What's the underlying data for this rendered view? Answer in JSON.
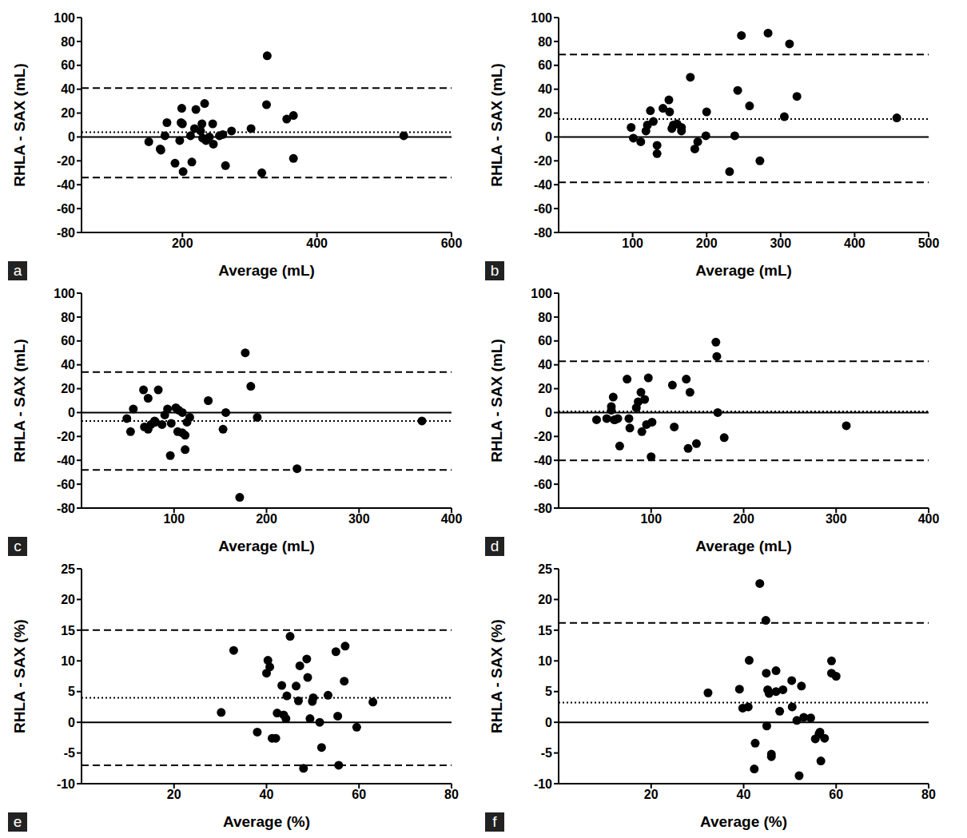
{
  "chart_data": [
    {
      "type": "scatter",
      "panel": "a",
      "x_label": "Average (mL)",
      "y_label": "RHLA - SAX (mL)",
      "color": "#000000",
      "marker": "circle",
      "xlim": [
        50,
        600
      ],
      "xticks": [
        200,
        400,
        600
      ],
      "ylim": [
        -80,
        100
      ],
      "yticks": [
        -80,
        -60,
        -40,
        -20,
        0,
        20,
        40,
        60,
        80,
        100
      ],
      "x": [
        150,
        167,
        168,
        177,
        174,
        189,
        198,
        199,
        200,
        196,
        201,
        212,
        214,
        218,
        220,
        227,
        229,
        233,
        230,
        235,
        240,
        245,
        246,
        255,
        260,
        264,
        273,
        302,
        318,
        325,
        326,
        355,
        365,
        365,
        529
      ],
      "y": [
        -4,
        -10,
        -11,
        12,
        1,
        -22,
        12,
        24,
        11,
        -3,
        -29,
        1,
        -21,
        7,
        23,
        5,
        11,
        28,
        -1,
        -3,
        0,
        11,
        -6,
        1,
        2,
        -24,
        5,
        7,
        -30,
        27,
        68,
        15,
        18,
        -18,
        1
      ],
      "reference_lines": [
        {
          "y": 0,
          "line_style": "solid"
        },
        {
          "y": 4,
          "line_style": "dotted"
        },
        {
          "y": 41,
          "line_style": "dashed"
        },
        {
          "y": -34,
          "line_style": "dashed"
        }
      ]
    },
    {
      "type": "scatter",
      "panel": "b",
      "x_label": "Average (mL)",
      "y_label": "RHLA - SAX (mL)",
      "color": "#000000",
      "marker": "circle",
      "xlim": [
        0,
        500
      ],
      "xticks": [
        100,
        200,
        300,
        400,
        500
      ],
      "ylim": [
        -80,
        100
      ],
      "yticks": [
        -80,
        -60,
        -40,
        -20,
        0,
        20,
        40,
        60,
        80,
        100
      ],
      "x": [
        98,
        101,
        111,
        118,
        120,
        124,
        128,
        133,
        133,
        141,
        149,
        150,
        153,
        155,
        160,
        166,
        166,
        178,
        184,
        188,
        200,
        199,
        231,
        238,
        242,
        247,
        258,
        272,
        283,
        305,
        312,
        322,
        457
      ],
      "y": [
        8,
        -1,
        -4,
        5,
        10,
        22,
        13,
        -7,
        -14,
        24,
        31,
        21,
        7,
        10,
        11,
        8,
        5,
        50,
        -10,
        -4,
        21,
        1,
        -29,
        1,
        39,
        85,
        26,
        -20,
        87,
        17,
        78,
        34,
        16
      ],
      "reference_lines": [
        {
          "y": 0,
          "line_style": "solid"
        },
        {
          "y": 15,
          "line_style": "dotted"
        },
        {
          "y": 69,
          "line_style": "dashed"
        },
        {
          "y": -38,
          "line_style": "dashed"
        }
      ]
    },
    {
      "type": "scatter",
      "panel": "c",
      "x_label": "Average (mL)",
      "y_label": "RHLA - SAX (mL)",
      "color": "#000000",
      "marker": "circle",
      "xlim": [
        0,
        400
      ],
      "xticks": [
        100,
        200,
        300,
        400
      ],
      "ylim": [
        -80,
        100
      ],
      "yticks": [
        -80,
        -60,
        -40,
        -20,
        0,
        20,
        40,
        60,
        80,
        100
      ],
      "x": [
        49,
        53,
        56,
        67,
        72,
        68,
        72,
        75,
        79,
        80,
        83,
        87,
        90,
        93,
        96,
        97,
        102,
        104,
        105,
        109,
        109,
        112,
        112,
        114,
        117,
        137,
        153,
        156,
        171,
        177,
        183,
        190,
        233,
        368
      ],
      "y": [
        -5,
        -16,
        3,
        19,
        12,
        -12,
        -14,
        -10,
        -7,
        -8,
        19,
        -10,
        -2,
        3,
        -36,
        -9,
        4,
        -16,
        2,
        -17,
        0,
        -31,
        -19,
        -8,
        -4,
        10,
        -14,
        0,
        -71,
        50,
        22,
        -4,
        -47,
        -7
      ],
      "reference_lines": [
        {
          "y": 0,
          "line_style": "solid"
        },
        {
          "y": -7,
          "line_style": "dotted"
        },
        {
          "y": 34,
          "line_style": "dashed"
        },
        {
          "y": -48,
          "line_style": "dashed"
        }
      ]
    },
    {
      "type": "scatter",
      "panel": "d",
      "x_label": "Average (mL)",
      "y_label": "RHLA - SAX (mL)",
      "color": "#000000",
      "marker": "circle",
      "xlim": [
        0,
        400
      ],
      "xticks": [
        100,
        200,
        300,
        400
      ],
      "ylim": [
        -80,
        100
      ],
      "yticks": [
        -80,
        -60,
        -40,
        -20,
        0,
        20,
        40,
        60,
        80,
        100
      ],
      "x": [
        41,
        52,
        57,
        57,
        59,
        60,
        61,
        64,
        66,
        74,
        77,
        76,
        84,
        86,
        89,
        90,
        93,
        95,
        97,
        100,
        101,
        123,
        125,
        138,
        140,
        142,
        149,
        170,
        171,
        172,
        179,
        311
      ],
      "y": [
        -6,
        -5,
        2,
        5,
        13,
        -6,
        -6,
        -5,
        -28,
        28,
        -13,
        -5,
        4,
        9,
        17,
        -16,
        11,
        -10,
        29,
        -37,
        -8,
        23,
        -12,
        28,
        -30,
        17,
        -26,
        59,
        47,
        0,
        -21,
        -11
      ],
      "reference_lines": [
        {
          "y": 0,
          "line_style": "solid"
        },
        {
          "y": 1,
          "line_style": "dotted"
        },
        {
          "y": 43,
          "line_style": "dashed"
        },
        {
          "y": -40,
          "line_style": "dashed"
        }
      ]
    },
    {
      "type": "scatter",
      "panel": "e",
      "x_label": "Average (%)",
      "y_label": "RHLA - SAX (%)",
      "color": "#000000",
      "marker": "circle",
      "xlim": [
        0,
        80
      ],
      "xticks": [
        20,
        40,
        60,
        80
      ],
      "ylim": [
        -10,
        25
      ],
      "yticks": [
        -10,
        -5,
        0,
        5,
        10,
        15,
        20,
        25
      ],
      "x": [
        30.2,
        32.9,
        38,
        40,
        40.3,
        40.7,
        41.2,
        42,
        42.3,
        43.3,
        43.7,
        44.4,
        44.2,
        45.1,
        46.4,
        46.9,
        47.2,
        48,
        48.7,
        48.9,
        49.4,
        50.1,
        49.9,
        51.5,
        51.9,
        53.3,
        55,
        55.4,
        55.6,
        57,
        56.8,
        59.5,
        63
      ],
      "y": [
        1.6,
        11.7,
        -1.6,
        8,
        10.1,
        9,
        -2.6,
        -2.6,
        1.5,
        6,
        1.2,
        4.3,
        0.6,
        14,
        5.9,
        3.5,
        9.2,
        -7.5,
        10.3,
        7.3,
        0.6,
        4,
        3.4,
        0,
        -4.1,
        4.4,
        11.5,
        1,
        -7,
        12.4,
        6.7,
        -0.8,
        3.3
      ],
      "reference_lines": [
        {
          "y": 0,
          "line_style": "solid"
        },
        {
          "y": 4,
          "line_style": "dotted"
        },
        {
          "y": 15,
          "line_style": "dashed"
        },
        {
          "y": -7,
          "line_style": "dashed"
        }
      ]
    },
    {
      "type": "scatter",
      "panel": "f",
      "x_label": "Average (%)",
      "y_label": "RHLA - SAX (%)",
      "color": "#000000",
      "marker": "circle",
      "xlim": [
        0,
        80
      ],
      "xticks": [
        20,
        40,
        60,
        80
      ],
      "ylim": [
        -10,
        25
      ],
      "yticks": [
        -10,
        -5,
        0,
        5,
        10,
        15,
        20,
        25
      ],
      "x": [
        32.3,
        39.1,
        39.8,
        41.2,
        41,
        42.5,
        42.3,
        43.5,
        44.8,
        44.9,
        45.2,
        45.5,
        45,
        46,
        46,
        47,
        47,
        47.8,
        48.5,
        50.4,
        50.5,
        51.5,
        52,
        52.5,
        53,
        54.5,
        55.5,
        56.3,
        56.7,
        57.5,
        59,
        59,
        60,
        56.5
      ],
      "y": [
        4.8,
        5.4,
        2.3,
        10.1,
        2.5,
        -3.4,
        -7.6,
        22.6,
        16.6,
        8,
        5.3,
        4.7,
        -0.6,
        -5.2,
        -5.6,
        8.4,
        5,
        1.8,
        5.3,
        6.8,
        2.5,
        0.3,
        -8.7,
        5.9,
        0.8,
        0.7,
        -2.7,
        -1.9,
        -6.3,
        -2.6,
        10,
        8,
        7.5,
        -1.6
      ],
      "reference_lines": [
        {
          "y": 0,
          "line_style": "solid"
        },
        {
          "y": 3.2,
          "line_style": "dotted"
        },
        {
          "y": 16.2,
          "line_style": "dashed"
        },
        {
          "y": -10,
          "line_style": "dashed"
        }
      ]
    }
  ]
}
